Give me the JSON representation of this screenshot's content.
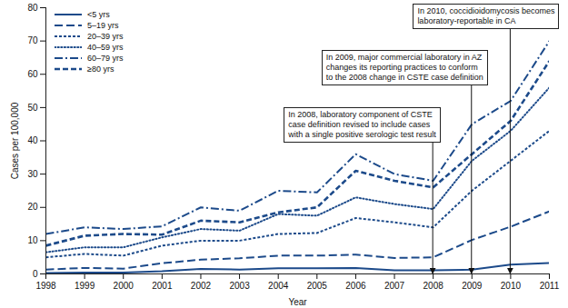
{
  "chart_data": {
    "type": "line",
    "x_label": "Year",
    "y_label": "Cases per 100,000",
    "x": [
      1998,
      1999,
      2000,
      2001,
      2002,
      2003,
      2004,
      2005,
      2006,
      2007,
      2008,
      2009,
      2010,
      2011
    ],
    "xlim": [
      1998,
      2011
    ],
    "xticks": [
      1998,
      1999,
      2000,
      2001,
      2002,
      2003,
      2004,
      2005,
      2006,
      2007,
      2008,
      2009,
      2010,
      2011
    ],
    "ylim": [
      0,
      80
    ],
    "yticks": [
      0,
      10,
      20,
      30,
      40,
      50,
      60,
      70,
      80
    ],
    "grid": false,
    "legend": "top-left",
    "series": [
      {
        "name": "<5 yrs",
        "color": "#1c4a8a",
        "line_style": "solid",
        "values": [
          0.3,
          0.4,
          0.4,
          0.8,
          1.5,
          1.3,
          1.7,
          1.7,
          1.8,
          1.1,
          1.1,
          1.3,
          2.8,
          3.3
        ]
      },
      {
        "name": "5–19 yrs",
        "color": "#1c4a8a",
        "line_style": "long_dash",
        "values": [
          1.3,
          1.8,
          1.6,
          3.2,
          4.3,
          4.7,
          5.5,
          5.5,
          5.8,
          4.8,
          5.0,
          10.2,
          14.2,
          18.8
        ]
      },
      {
        "name": "20–39 yrs",
        "color": "#1c4a8a",
        "line_style": "short_dash",
        "values": [
          5,
          6,
          5.5,
          8.5,
          10,
          10,
          12,
          12.3,
          16.8,
          15.5,
          14,
          25,
          34,
          43
        ]
      },
      {
        "name": "40–59 yrs",
        "color": "#1c4a8a",
        "line_style": "dotted",
        "values": [
          6.5,
          8,
          8,
          11,
          13.5,
          13,
          18,
          17.5,
          23,
          21,
          19.5,
          34,
          43,
          56
        ]
      },
      {
        "name": "60–79 yrs",
        "color": "#1c4a8a",
        "line_style": "dash_dot",
        "values": [
          12,
          14,
          13.5,
          14.3,
          20,
          19,
          25,
          24.5,
          36,
          30,
          28,
          45,
          52,
          70
        ]
      },
      {
        "name": "≥80 yrs",
        "color": "#1c4a8a",
        "line_style": "dash",
        "values": [
          8.5,
          11.5,
          12,
          11.8,
          16,
          15.5,
          18.5,
          20,
          31,
          28,
          26,
          36,
          46,
          64
        ]
      }
    ],
    "annotations": [
      {
        "text": "In 2008, laboratory component of CSTE\ncase definition revised to include cases\nwith a single positive serologic test result",
        "x": 2008
      },
      {
        "text": "In 2009, major commercial laboratory in AZ\nchanges its reporting practices to conform\nto the 2008 change in CSTE case definition",
        "x": 2009
      },
      {
        "text": "In 2010, coccidioidomycosis becomes\nlaboratory-reportable in CA",
        "x": 2010
      }
    ]
  }
}
